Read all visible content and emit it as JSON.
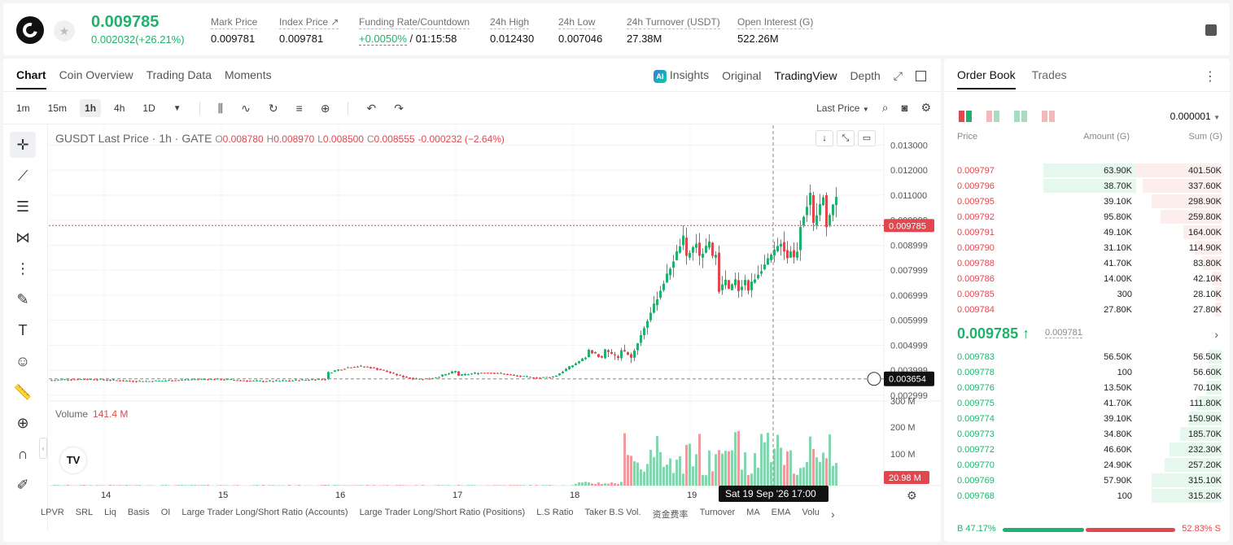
{
  "ticker": {
    "price": "0.009785",
    "change": "0.002032(+26.21%)",
    "stats": [
      {
        "label": "Mark Price",
        "value": "0.009781"
      },
      {
        "label": "Index Price ↗",
        "value": "0.009781"
      },
      {
        "label": "Funding Rate/Countdown",
        "value_green": "+0.0050%",
        "value": " / 01:15:58"
      },
      {
        "label": "24h High",
        "value": "0.012430"
      },
      {
        "label": "24h Low",
        "value": "0.007046"
      },
      {
        "label": "24h Turnover (USDT)",
        "value": "27.38M"
      },
      {
        "label": "Open Interest (G)",
        "value": "522.26M"
      }
    ]
  },
  "chart_panel": {
    "tabs": [
      "Chart",
      "Coin Overview",
      "Trading Data",
      "Moments"
    ],
    "right_tabs": [
      "Insights",
      "Original",
      "TradingView",
      "Depth"
    ],
    "intervals": [
      "1m",
      "15m",
      "1h",
      "4h",
      "1D"
    ],
    "price_type": "Last Price",
    "legend": {
      "symbol": "GUSDT Last Price · 1h · GATE",
      "o": "0.008780",
      "h": "0.008970",
      "l": "0.008500",
      "c": "0.008555",
      "chg": "-0.000232 (−2.64%)"
    },
    "volume_label": "Volume",
    "volume_value": "141.4 M",
    "bottom_tabs": [
      "LPVR",
      "SRL",
      "Liq",
      "Basis",
      "OI",
      "Large Trader Long/Short Ratio (Accounts)",
      "Large Trader Long/Short Ratio (Positions)",
      "L.S Ratio",
      "Taker B.S Vol.",
      "资金费率",
      "Turnover",
      "MA",
      "EMA",
      "Volu"
    ],
    "crosshair_label": "Sat 19 Sep '26   17:00",
    "last_price_tag": "0.009785",
    "cross_price_tag": "0.003654",
    "vol_tag": "20.98 M"
  },
  "chart_data": {
    "type": "candlestick",
    "y_ticks": [
      "0.013000",
      "0.012000",
      "0.011000",
      "0.009999",
      "0.008999",
      "0.007999",
      "0.006999",
      "0.005999",
      "0.004999",
      "0.003999",
      "0.002999"
    ],
    "ylim": [
      0.0028,
      0.0136
    ],
    "x_ticks": [
      "14",
      "15",
      "16",
      "17",
      "18",
      "19"
    ],
    "vol_ticks": [
      "300 M",
      "200 M",
      "100 M"
    ],
    "colors": {
      "up": "#20b26c",
      "down": "#e0474e"
    }
  },
  "orderbook": {
    "tabs": [
      "Order Book",
      "Trades"
    ],
    "precision": "0.000001",
    "headers": [
      "Price",
      "Amount (G)",
      "Sum (G)"
    ],
    "asks": [
      {
        "price": "0.009797",
        "amount": "63.90K",
        "sum": "401.50K"
      },
      {
        "price": "0.009796",
        "amount": "38.70K",
        "sum": "337.60K"
      },
      {
        "price": "0.009795",
        "amount": "39.10K",
        "sum": "298.90K"
      },
      {
        "price": "0.009792",
        "amount": "95.80K",
        "sum": "259.80K"
      },
      {
        "price": "0.009791",
        "amount": "49.10K",
        "sum": "164.00K"
      },
      {
        "price": "0.009790",
        "amount": "31.10K",
        "sum": "114.90K"
      },
      {
        "price": "0.009788",
        "amount": "41.70K",
        "sum": "83.80K"
      },
      {
        "price": "0.009786",
        "amount": "14.00K",
        "sum": "42.10K"
      },
      {
        "price": "0.009785",
        "amount": "300",
        "sum": "28.10K"
      },
      {
        "price": "0.009784",
        "amount": "27.80K",
        "sum": "27.80K"
      }
    ],
    "mid_price": "0.009785 ↑",
    "mid_sub": "0.009781",
    "bids": [
      {
        "price": "0.009783",
        "amount": "56.50K",
        "sum": "56.50K"
      },
      {
        "price": "0.009778",
        "amount": "100",
        "sum": "56.60K"
      },
      {
        "price": "0.009776",
        "amount": "13.50K",
        "sum": "70.10K"
      },
      {
        "price": "0.009775",
        "amount": "41.70K",
        "sum": "111.80K"
      },
      {
        "price": "0.009774",
        "amount": "39.10K",
        "sum": "150.90K"
      },
      {
        "price": "0.009773",
        "amount": "34.80K",
        "sum": "185.70K"
      },
      {
        "price": "0.009772",
        "amount": "46.60K",
        "sum": "232.30K"
      },
      {
        "price": "0.009770",
        "amount": "24.90K",
        "sum": "257.20K"
      },
      {
        "price": "0.009769",
        "amount": "57.90K",
        "sum": "315.10K"
      },
      {
        "price": "0.009768",
        "amount": "100",
        "sum": "315.20K"
      }
    ],
    "buy_pct": "B 47.17%",
    "sell_pct": "52.83% S",
    "buy_ratio": 0.4717
  }
}
